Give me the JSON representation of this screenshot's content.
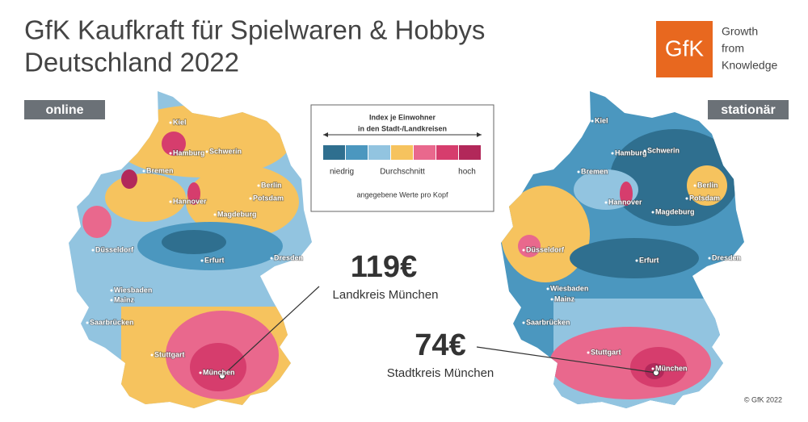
{
  "title_lines": [
    "GfK Kaufkraft für Spielwaren & Hobbys",
    "Deutschland 2022"
  ],
  "logo": {
    "mark": "GfK",
    "tagline": [
      "Growth",
      "from",
      "Knowledge"
    ]
  },
  "maps": [
    {
      "label": "online",
      "cities": [
        "Kiel",
        "Hamburg",
        "Schwerin",
        "Bremen",
        "Berlin",
        "Potsdam",
        "Hannover",
        "Magdeburg",
        "Düsseldorf",
        "Erfurt",
        "Dresden",
        "Wiesbaden",
        "Mainz",
        "Saarbrücken",
        "Stuttgart",
        "München"
      ]
    },
    {
      "label": "stationär",
      "cities": [
        "Kiel",
        "Hamburg",
        "Schwerin",
        "Bremen",
        "Berlin",
        "Potsdam",
        "Hannover",
        "Magdeburg",
        "Düsseldorf",
        "Erfurt",
        "Dresden",
        "Wiesbaden",
        "Mainz",
        "Saarbrücken",
        "Stuttgart",
        "München"
      ]
    }
  ],
  "legend": {
    "title_lines": [
      "Index je Einwohner",
      "in den Stadt-/Landkreisen"
    ],
    "colors": [
      "#2f6f8f",
      "#4b97bf",
      "#92c4e0",
      "#f6c35e",
      "#e9688d",
      "#d63d6d",
      "#b2285a"
    ],
    "labels": [
      "niedrig",
      "Durchschnitt",
      "hoch"
    ],
    "note": "angegebene Werte pro Kopf"
  },
  "annotations": [
    {
      "value": "119€",
      "label": "Landkreis München"
    },
    {
      "value": "74€",
      "label": "Stadtkreis München"
    }
  ],
  "copyright": "© GfK 2022"
}
